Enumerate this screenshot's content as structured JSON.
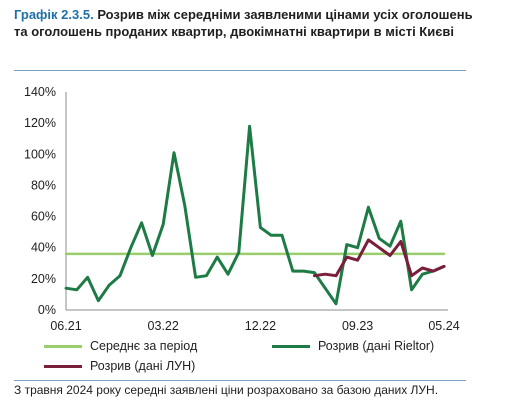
{
  "header": {
    "prefix": "Графік 2.3.5.",
    "title": "Розрив між середніми заявленими цінами усіх оголошень та оголошень проданих квартир, двокімнатні квартири в місті Києві"
  },
  "chart_data": {
    "type": "line",
    "x": [
      0,
      1,
      2,
      3,
      4,
      5,
      6,
      7,
      8,
      9,
      10,
      11,
      12,
      13,
      14,
      15,
      16,
      17,
      18,
      19,
      20,
      21,
      22,
      23,
      24,
      25,
      26,
      27,
      28,
      29,
      30,
      31,
      32,
      33,
      34,
      35
    ],
    "x_tick_labels": [
      {
        "x": 0,
        "label": "06.21"
      },
      {
        "x": 9,
        "label": "03.22"
      },
      {
        "x": 18,
        "label": "12.22"
      },
      {
        "x": 27,
        "label": "09.23"
      },
      {
        "x": 35,
        "label": "05.24"
      }
    ],
    "y_tick_labels": [
      "0%",
      "20%",
      "40%",
      "60%",
      "80%",
      "100%",
      "120%",
      "140%"
    ],
    "ylim": [
      0,
      140
    ],
    "grid": false,
    "legend_position": "bottom",
    "series": [
      {
        "name": "Середнє за період",
        "color": "#9acd6b",
        "values": [
          36,
          36,
          36,
          36,
          36,
          36,
          36,
          36,
          36,
          36,
          36,
          36,
          36,
          36,
          36,
          36,
          36,
          36,
          36,
          36,
          36,
          36,
          36,
          36,
          36,
          36,
          36,
          36,
          36,
          36,
          36,
          36,
          36,
          36,
          36,
          36
        ]
      },
      {
        "name": "Розрив (дані Rieltor)",
        "color": "#1e7b45",
        "values": [
          14,
          13,
          21,
          6,
          16,
          22,
          40,
          56,
          35,
          55,
          101,
          67,
          21,
          22,
          34,
          23,
          37,
          118,
          53,
          48,
          48,
          25,
          25,
          24,
          14,
          4,
          42,
          40,
          66,
          46,
          41,
          57,
          13,
          23,
          25,
          28
        ]
      },
      {
        "name": "Розрив (дані ЛУН)",
        "color": "#7a1e3a",
        "values": [
          null,
          null,
          null,
          null,
          null,
          null,
          null,
          null,
          null,
          null,
          null,
          null,
          null,
          null,
          null,
          null,
          null,
          null,
          null,
          null,
          null,
          null,
          null,
          22,
          23,
          22,
          34,
          32,
          45,
          40,
          35,
          44,
          22,
          27,
          25,
          28
        ]
      }
    ]
  },
  "note": "З травня 2024 року середні заявлені ціни розраховано за базою даних ЛУН."
}
